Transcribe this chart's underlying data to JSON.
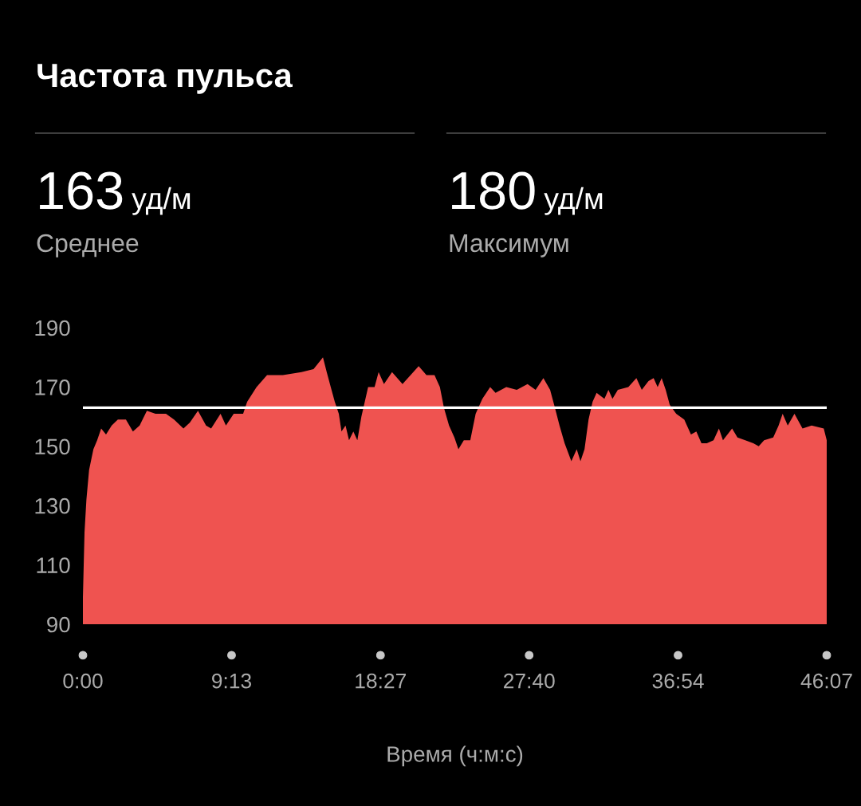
{
  "chart_data": {
    "type": "area",
    "title": "Частота пульса",
    "xlabel": "Время (ч:м:с)",
    "annotations": [
      "163",
      "уд/м",
      "Среднее",
      "180",
      "уд/м",
      "Максимум"
    ],
    "color": "#ef5350",
    "x": [
      0,
      6,
      13,
      23,
      39,
      53,
      68,
      86,
      107,
      130,
      160,
      186,
      211,
      238,
      270,
      309,
      339,
      374,
      398,
      428,
      458,
      477,
      512,
      532,
      561,
      596,
      611,
      646,
      685,
      744,
      813,
      858,
      893,
      907,
      922,
      937,
      952,
      962,
      977,
      990,
      1006,
      1021,
      1036,
      1061,
      1085,
      1100,
      1120,
      1150,
      1189,
      1219,
      1249,
      1278,
      1308,
      1328,
      1343,
      1362,
      1382,
      1397,
      1417,
      1441,
      1461,
      1486,
      1515,
      1535,
      1575,
      1614,
      1654,
      1684,
      1713,
      1738,
      1753,
      1773,
      1792,
      1817,
      1837,
      1851,
      1866,
      1881,
      1896,
      1911,
      1940,
      1955,
      1970,
      1990,
      2029,
      2059,
      2079,
      2104,
      2123,
      2138,
      2153,
      2168,
      2183,
      2207,
      2237,
      2262,
      2282,
      2301,
      2321,
      2346,
      2366,
      2381,
      2415,
      2435,
      2464,
      2494,
      2514,
      2534,
      2568,
      2588,
      2603,
      2622,
      2647,
      2677,
      2711,
      2756,
      2767
    ],
    "values": [
      99,
      121,
      132,
      142,
      149,
      152,
      156,
      154,
      157,
      159,
      159,
      155,
      157,
      162,
      161,
      161,
      159,
      156,
      158,
      162,
      157,
      156,
      161,
      157,
      161,
      161,
      165,
      170,
      174,
      174,
      175,
      176,
      180,
      175,
      170,
      165,
      161,
      155,
      157,
      152,
      155,
      152,
      160,
      170,
      170,
      175,
      171,
      175,
      171,
      174,
      177,
      174,
      174,
      170,
      163,
      157,
      153,
      149,
      152,
      152,
      161,
      166,
      170,
      168,
      170,
      169,
      171,
      169,
      173,
      169,
      164,
      157,
      151,
      145,
      149,
      145,
      149,
      159,
      165,
      168,
      166,
      169,
      166,
      169,
      170,
      173,
      169,
      172,
      173,
      170,
      173,
      169,
      164,
      161,
      159,
      154,
      155,
      151,
      151,
      152,
      156,
      152,
      156,
      153,
      152,
      151,
      150,
      152,
      153,
      157,
      161,
      157,
      161,
      156,
      157,
      156,
      152
    ],
    "xlim": [
      0,
      2767
    ],
    "xticks": [
      {
        "value": 0,
        "label": "0:00"
      },
      {
        "value": 553,
        "label": "9:13"
      },
      {
        "value": 1107,
        "label": "18:27"
      },
      {
        "value": 1660,
        "label": "27:40"
      },
      {
        "value": 2214,
        "label": "36:54"
      },
      {
        "value": 2767,
        "label": "46:07"
      }
    ],
    "ylim": [
      90,
      190
    ],
    "yticks": [
      90,
      110,
      130,
      150,
      170,
      190
    ],
    "ref_lines": [
      {
        "axis": "y",
        "value": 163,
        "color": "#ffffff"
      }
    ],
    "grid": false
  }
}
